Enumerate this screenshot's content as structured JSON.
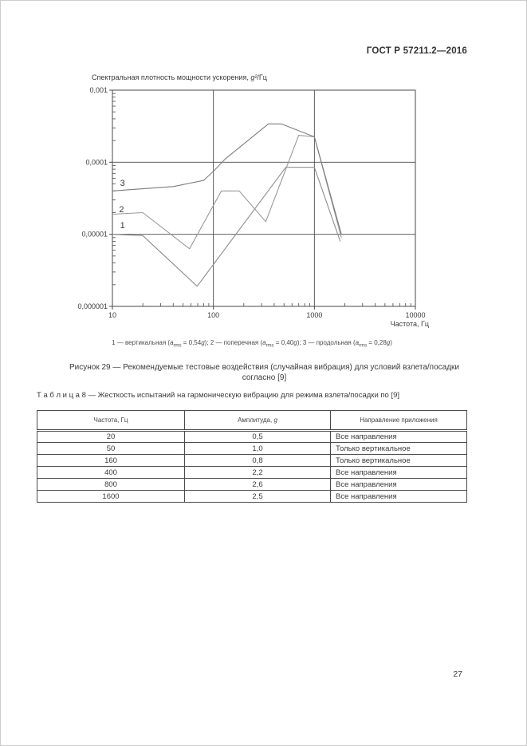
{
  "page": {
    "header_title": "ГОСТ Р 57211.2—2016",
    "page_number": "27"
  },
  "chart_data": {
    "type": "line",
    "title_text": "Спектральная плотность мощности ускорения, ",
    "title_var": "g²",
    "title_unit": "/Гц",
    "xlabel": "Частота, Гц",
    "x_scale": "log",
    "y_scale": "log",
    "xlim": [
      10,
      10000
    ],
    "ylim": [
      1e-06,
      0.001
    ],
    "x_ticks": [
      10,
      100,
      1000,
      10000
    ],
    "x_tick_labels": [
      "10",
      "100",
      "1000",
      "10000"
    ],
    "y_ticks": [
      0.001,
      0.0001,
      1e-05,
      1e-06
    ],
    "y_tick_labels": [
      "0,001",
      "0,0001",
      "0,00001",
      "0,000001"
    ],
    "x_gridlines": [
      100,
      1000
    ],
    "y_gridlines": [
      0.0001,
      1e-05
    ],
    "grid": true,
    "legend_position": "below",
    "series": [
      {
        "name": "1",
        "description": "вертикальная, a_rms = 0,54g",
        "color": "#8e8e8e",
        "label_at": [
          12.6,
          1.35e-05
        ],
        "points": [
          [
            10,
            1e-05
          ],
          [
            20,
            9.6e-06
          ],
          [
            69,
            1.9e-06
          ],
          [
            520,
            8.5e-05
          ],
          [
            1000,
            8.5e-05
          ],
          [
            1800,
            8e-06
          ]
        ]
      },
      {
        "name": "2",
        "description": "поперечная, a_rms = 0,40g",
        "color": "#999999",
        "label_at": [
          12.3,
          2.25e-05
        ],
        "points": [
          [
            10,
            1.9e-05
          ],
          [
            20,
            2e-05
          ],
          [
            58,
            6.3e-06
          ],
          [
            120,
            4e-05
          ],
          [
            180,
            4e-05
          ],
          [
            330,
            1.5e-05
          ],
          [
            700,
            0.000236
          ],
          [
            1000,
            0.000225
          ],
          [
            1850,
            9e-06
          ]
        ]
      },
      {
        "name": "3",
        "description": "продольная, a_rms = 0,28g",
        "color": "#7d7d7d",
        "label_at": [
          12.6,
          5.2e-05
        ],
        "points": [
          [
            10,
            4e-05
          ],
          [
            40,
            4.6e-05
          ],
          [
            80,
            5.6e-05
          ],
          [
            100,
            7.5e-05
          ],
          [
            130,
            0.00011
          ],
          [
            350,
            0.00034
          ],
          [
            470,
            0.00034
          ],
          [
            1000,
            0.000225
          ],
          [
            1850,
            1e-05
          ]
        ]
      }
    ]
  },
  "figure": {
    "legend_items": [
      {
        "prefix": "1 — вертикальная (",
        "var": "a",
        "sub": "rms",
        "mid": " = 0,54",
        "unit": "g",
        "suffix": "); "
      },
      {
        "prefix": "2 — поперечная (",
        "var": "a",
        "sub": "rms",
        "mid": " = 0,40",
        "unit": "g",
        "suffix": "); "
      },
      {
        "prefix": "3 — продольная (",
        "var": "a",
        "sub": "rms",
        "mid": " = 0,28",
        "unit": "g",
        "suffix": ")"
      }
    ],
    "caption_line1": "Рисунок 29 — Рекомендуемые тестовые воздействия (случайная вибрация) для условий взлета/посадки",
    "caption_line2": "согласно [9]"
  },
  "table": {
    "title": "Т а б л и ц а  8 — Жесткость испытаний на гармоническую вибрацию для режима взлета/посадки по [9]",
    "headers": [
      {
        "text": "Частота, Гц"
      },
      {
        "text": "Амплитуда, ",
        "unit": "g"
      },
      {
        "text": "Направление приложения"
      }
    ],
    "rows": [
      {
        "freq": "20",
        "amp": "0,5",
        "dir": "Все направления"
      },
      {
        "freq": "50",
        "amp": "1,0",
        "dir": "Только вертикальное"
      },
      {
        "freq": "160",
        "amp": "0,8",
        "dir": "Только вертикальное"
      },
      {
        "freq": "400",
        "amp": "2,2",
        "dir": "Все направления"
      },
      {
        "freq": "800",
        "amp": "2,6",
        "dir": "Все направления"
      },
      {
        "freq": "1600",
        "amp": "2,5",
        "dir": "Все направления"
      }
    ]
  },
  "colors": {
    "text": "#3a3a3a",
    "axis": "#4a4a4a",
    "table_border": "#4a4a4a",
    "page_border": "#cccccc"
  }
}
